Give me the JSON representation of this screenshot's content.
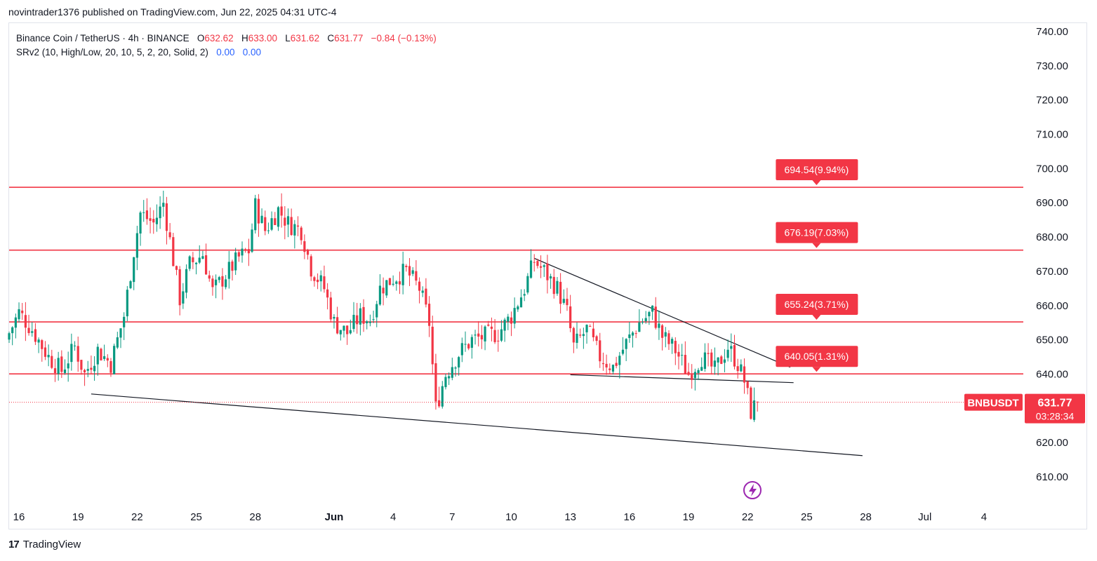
{
  "header": {
    "published_line": "novintrader1376 published on TradingView.com, Jun 22, 2025 04:31 UTC-4"
  },
  "legend": {
    "symbol_line": "Binance Coin / TetherUS · 4h · BINANCE",
    "o_label": "O",
    "o_value": "632.62",
    "h_label": "H",
    "h_value": "633.00",
    "l_label": "L",
    "l_value": "631.62",
    "c_label": "C",
    "c_value": "631.77",
    "change": "−0.84 (−0.13%)",
    "indicator": "SRv2 (10, High/Low, 20, 10, 5, 2, 20, Solid, 2)",
    "ind_value1": "0.00",
    "ind_value2": "0.00"
  },
  "footer": {
    "logo": "17",
    "brand": "TradingView"
  },
  "colors": {
    "up": "#089981",
    "down": "#f23645",
    "sr_line": "#f23645",
    "trendline": "#131722",
    "indicator_value": "#2962ff"
  },
  "chart_data": {
    "type": "candlestick",
    "symbol": "BNBUSDT",
    "timeframe": "4h",
    "ylim": [
      602,
      742
    ],
    "y_ticks": [
      "740.00",
      "730.00",
      "720.00",
      "710.00",
      "700.00",
      "690.00",
      "680.00",
      "670.00",
      "660.00",
      "650.00",
      "640.00",
      "630.00",
      "620.00",
      "610.00"
    ],
    "x_ticks": [
      "16",
      "19",
      "22",
      "25",
      "28",
      "Jun",
      "4",
      "7",
      "10",
      "13",
      "16",
      "19",
      "22",
      "25",
      "28",
      "Jul",
      "4"
    ],
    "x_tick_dates": [
      "2025-05-16",
      "2025-05-19",
      "2025-05-22",
      "2025-05-25",
      "2025-05-28",
      "2025-06-01",
      "2025-06-04",
      "2025-06-07",
      "2025-06-10",
      "2025-06-13",
      "2025-06-16",
      "2025-06-19",
      "2025-06-22",
      "2025-06-25",
      "2025-06-28",
      "2025-07-01",
      "2025-07-04"
    ],
    "x_range": [
      "2025-05-15T12:00",
      "2025-07-06T00:00"
    ],
    "last_price": {
      "label": "BNBUSDT",
      "value": "631.77",
      "countdown": "03:28:34"
    },
    "levels": [
      {
        "price": 694.54,
        "label": "694.54(9.94%)"
      },
      {
        "price": 676.19,
        "label": "676.19(7.03%)"
      },
      {
        "price": 655.24,
        "label": "655.24(3.71%)"
      },
      {
        "price": 640.05,
        "label": "640.05(1.31%)"
      }
    ],
    "level_label_date": "2025-06-25T12:00",
    "trendlines": [
      {
        "name": "lower-support",
        "from": [
          "2025-05-19T16:00",
          634.2
        ],
        "to": [
          "2025-06-27T20:00",
          616.2
        ]
      },
      {
        "name": "upper-resistance",
        "from": [
          "2025-06-11T04:00",
          673.8
        ],
        "to": [
          "2025-06-24T04:00",
          642.0
        ]
      },
      {
        "name": "short-support",
        "from": [
          "2025-06-13T00:00",
          639.8
        ],
        "to": [
          "2025-06-24T08:00",
          637.5
        ]
      }
    ],
    "ohlc_path": [
      [
        "2025-05-15T12:00",
        650
      ],
      [
        "2025-05-16T04:00",
        658
      ],
      [
        "2025-05-16T20:00",
        653
      ],
      [
        "2025-05-17T16:00",
        645
      ],
      [
        "2025-05-18T08:00",
        641
      ],
      [
        "2025-05-19T00:00",
        648
      ],
      [
        "2025-05-19T12:00",
        640
      ],
      [
        "2025-05-20T04:00",
        647
      ],
      [
        "2025-05-20T20:00",
        643
      ],
      [
        "2025-05-21T12:00",
        657
      ],
      [
        "2025-05-22T00:00",
        676
      ],
      [
        "2025-05-22T08:00",
        687
      ],
      [
        "2025-05-23T00:00",
        684
      ],
      [
        "2025-05-23T12:00",
        690
      ],
      [
        "2025-05-23T20:00",
        679
      ],
      [
        "2025-05-24T08:00",
        662
      ],
      [
        "2025-05-24T20:00",
        672
      ],
      [
        "2025-05-25T12:00",
        675
      ],
      [
        "2025-05-26T00:00",
        664
      ],
      [
        "2025-05-26T16:00",
        669
      ],
      [
        "2025-05-27T08:00",
        674
      ],
      [
        "2025-05-27T20:00",
        676
      ],
      [
        "2025-05-28T04:00",
        689
      ],
      [
        "2025-05-28T16:00",
        682
      ],
      [
        "2025-05-29T08:00",
        688
      ],
      [
        "2025-05-29T20:00",
        684
      ],
      [
        "2025-05-30T12:00",
        682
      ],
      [
        "2025-05-31T00:00",
        671
      ],
      [
        "2025-05-31T16:00",
        665
      ],
      [
        "2025-06-01T04:00",
        655
      ],
      [
        "2025-06-01T20:00",
        652
      ],
      [
        "2025-06-02T12:00",
        657
      ],
      [
        "2025-06-03T00:00",
        656
      ],
      [
        "2025-06-03T12:00",
        665
      ],
      [
        "2025-06-04T04:00",
        668
      ],
      [
        "2025-06-04T20:00",
        670
      ],
      [
        "2025-06-05T12:00",
        665
      ],
      [
        "2025-06-06T00:00",
        655
      ],
      [
        "2025-06-06T08:00",
        630
      ],
      [
        "2025-06-06T20:00",
        640
      ],
      [
        "2025-06-07T12:00",
        646
      ],
      [
        "2025-06-08T04:00",
        650
      ],
      [
        "2025-06-08T20:00",
        651
      ],
      [
        "2025-06-09T12:00",
        652
      ],
      [
        "2025-06-10T04:00",
        657
      ],
      [
        "2025-06-10T20:00",
        665
      ],
      [
        "2025-06-11T08:00",
        673
      ],
      [
        "2025-06-11T20:00",
        670
      ],
      [
        "2025-06-12T12:00",
        665
      ],
      [
        "2025-06-13T00:00",
        658
      ],
      [
        "2025-06-13T08:00",
        648
      ],
      [
        "2025-06-14T00:00",
        653
      ],
      [
        "2025-06-14T16:00",
        645
      ],
      [
        "2025-06-15T08:00",
        642
      ],
      [
        "2025-06-16T00:00",
        649
      ],
      [
        "2025-06-16T16:00",
        655
      ],
      [
        "2025-06-17T08:00",
        658
      ],
      [
        "2025-06-17T20:00",
        651
      ],
      [
        "2025-06-18T12:00",
        647
      ],
      [
        "2025-06-19T04:00",
        640
      ],
      [
        "2025-06-19T20:00",
        645
      ],
      [
        "2025-06-20T12:00",
        641
      ],
      [
        "2025-06-21T04:00",
        648
      ],
      [
        "2025-06-21T16:00",
        643
      ],
      [
        "2025-06-22T00:00",
        638
      ],
      [
        "2025-06-22T08:00",
        629
      ],
      [
        "2025-06-22T16:00",
        631.77
      ]
    ]
  }
}
